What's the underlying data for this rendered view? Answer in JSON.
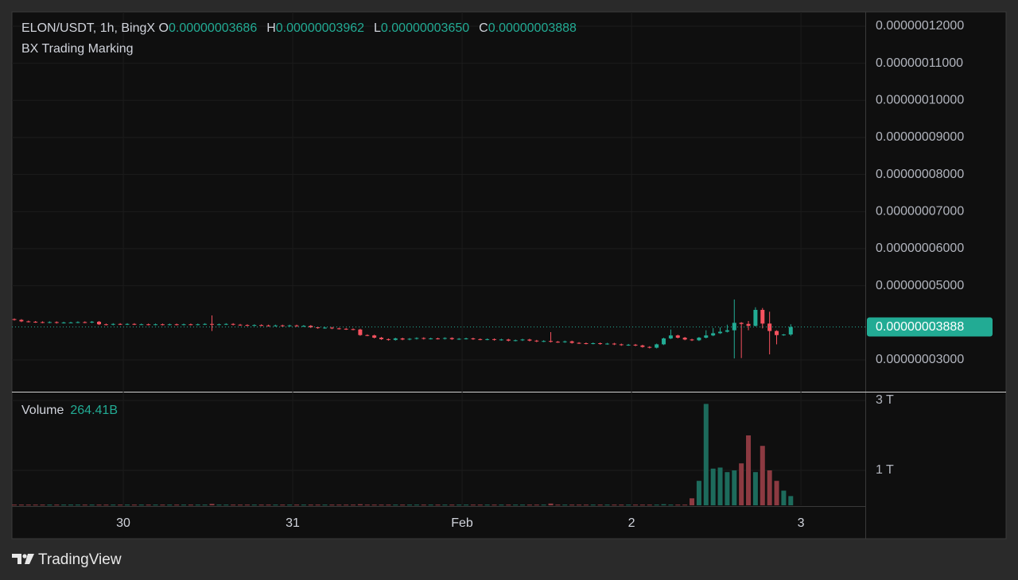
{
  "chart_data": {
    "type": "candlestick",
    "symbol": "ELON/USDT, 1h, BingX",
    "subtitle": "BX Trading Marking",
    "legend_keys": [
      "O",
      "H",
      "L",
      "C"
    ],
    "last_labels": {
      "open": "0.00000003686",
      "high": "0.00000003962",
      "low": "0.00000003650",
      "close": "0.00000003888"
    },
    "volume_title": "Volume",
    "last_volume_label": "264.41B",
    "brand": "TradingView",
    "up_color": "#22ab94",
    "down_color": "#f7525f",
    "volume_up_color": "#1d6b5c",
    "volume_down_color": "#8c3a41",
    "grid": true,
    "xlim": [
      -0.34,
      120.56
    ],
    "xticks": [
      {
        "value": 15.44,
        "label": "30"
      },
      {
        "value": 39.44,
        "label": "31"
      },
      {
        "value": 63.44,
        "label": "Feb"
      },
      {
        "value": 87.44,
        "label": "2"
      },
      {
        "value": 111.44,
        "label": "3"
      }
    ],
    "ylim": [
      2.143e-08,
      1.2385e-07
    ],
    "yticks": [
      {
        "value": 1.2e-07,
        "label": "0.00000012000"
      },
      {
        "value": 1.1e-07,
        "label": "0.00000011000"
      },
      {
        "value": 1e-07,
        "label": "0.00000010000"
      },
      {
        "value": 9e-08,
        "label": "0.00000009000"
      },
      {
        "value": 8e-08,
        "label": "0.00000008000"
      },
      {
        "value": 7e-08,
        "label": "0.00000007000"
      },
      {
        "value": 6e-08,
        "label": "0.00000006000"
      },
      {
        "value": 5e-08,
        "label": "0.00000005000"
      },
      {
        "value": 3e-08,
        "label": "0.00000003000"
      }
    ],
    "vlim": [
      0,
      3227000000000.0
    ],
    "vticks": [
      {
        "value": 3000000000000.0,
        "label": "3 T"
      },
      {
        "value": 1000000000000.0,
        "label": "1 T"
      }
    ],
    "open": [
      4.1e-08,
      4.08e-08,
      4.04e-08,
      4.03e-08,
      4.02e-08,
      4.01e-08,
      4.02e-08,
      4e-08,
      4.01e-08,
      4.01e-08,
      4.02e-08,
      4.01e-08,
      4.03e-08,
      3.96e-08,
      3.95e-08,
      3.97e-08,
      3.96e-08,
      3.97e-08,
      3.96e-08,
      3.96e-08,
      3.95e-08,
      3.96e-08,
      3.95e-08,
      3.96e-08,
      3.95e-08,
      3.96e-08,
      3.95e-08,
      3.96e-08,
      3.97e-08,
      3.95e-08,
      3.96e-08,
      3.97e-08,
      3.95e-08,
      3.94e-08,
      3.93e-08,
      3.94e-08,
      3.93e-08,
      3.92e-08,
      3.93e-08,
      3.92e-08,
      3.93e-08,
      3.91e-08,
      3.92e-08,
      3.88e-08,
      3.86e-08,
      3.87e-08,
      3.85e-08,
      3.84e-08,
      3.83e-08,
      3.82e-08,
      3.67e-08,
      3.66e-08,
      3.6e-08,
      3.56e-08,
      3.54e-08,
      3.58e-08,
      3.55e-08,
      3.57e-08,
      3.59e-08,
      3.57e-08,
      3.58e-08,
      3.57e-08,
      3.59e-08,
      3.56e-08,
      3.57e-08,
      3.58e-08,
      3.56e-08,
      3.55e-08,
      3.56e-08,
      3.54e-08,
      3.55e-08,
      3.52e-08,
      3.53e-08,
      3.55e-08,
      3.52e-08,
      3.5e-08,
      3.51e-08,
      3.49e-08,
      3.48e-08,
      3.5e-08,
      3.46e-08,
      3.45e-08,
      3.44e-08,
      3.45e-08,
      3.43e-08,
      3.44e-08,
      3.42e-08,
      3.4e-08,
      3.41e-08,
      3.39e-08,
      3.35e-08,
      3.33e-08,
      3.42e-08,
      3.58e-08,
      3.66e-08,
      3.6e-08,
      3.55e-08,
      3.53e-08,
      3.6e-08,
      3.66e-08,
      3.72e-08,
      3.76e-08,
      3.8e-08,
      4e-08,
      3.97e-08,
      3.92e-08,
      4.35e-08,
      3.98e-08,
      3.78e-08,
      3.67e-08,
      3.686e-08
    ],
    "high": [
      4.12e-08,
      4.1e-08,
      4.06e-08,
      4.05e-08,
      4.04e-08,
      4.04e-08,
      4.04e-08,
      4.03e-08,
      4.03e-08,
      4.04e-08,
      4.04e-08,
      4.05e-08,
      4.05e-08,
      3.98e-08,
      3.99e-08,
      3.99e-08,
      3.99e-08,
      3.99e-08,
      3.98e-08,
      3.98e-08,
      3.98e-08,
      3.98e-08,
      3.98e-08,
      3.98e-08,
      3.98e-08,
      3.98e-08,
      3.98e-08,
      3.99e-08,
      4.2e-08,
      3.98e-08,
      3.99e-08,
      3.99e-08,
      3.97e-08,
      3.96e-08,
      3.96e-08,
      3.96e-08,
      3.95e-08,
      3.95e-08,
      3.95e-08,
      3.95e-08,
      3.95e-08,
      3.94e-08,
      3.94e-08,
      3.9e-08,
      3.89e-08,
      3.89e-08,
      3.87e-08,
      3.86e-08,
      3.85e-08,
      3.84e-08,
      3.69e-08,
      3.68e-08,
      3.62e-08,
      3.58e-08,
      3.6e-08,
      3.6e-08,
      3.59e-08,
      3.61e-08,
      3.61e-08,
      3.6e-08,
      3.6e-08,
      3.61e-08,
      3.61e-08,
      3.59e-08,
      3.6e-08,
      3.6e-08,
      3.58e-08,
      3.58e-08,
      3.58e-08,
      3.57e-08,
      3.57e-08,
      3.55e-08,
      3.57e-08,
      3.57e-08,
      3.54e-08,
      3.53e-08,
      3.75e-08,
      3.51e-08,
      3.52e-08,
      3.52e-08,
      3.48e-08,
      3.47e-08,
      3.47e-08,
      3.47e-08,
      3.46e-08,
      3.46e-08,
      3.44e-08,
      3.43e-08,
      3.43e-08,
      3.41e-08,
      3.37e-08,
      3.44e-08,
      3.6e-08,
      3.82e-08,
      3.68e-08,
      3.62e-08,
      3.57e-08,
      3.62e-08,
      3.8e-08,
      3.86e-08,
      3.88e-08,
      3.95e-08,
      4.63e-08,
      4.02e-08,
      4.05e-08,
      4.42e-08,
      4.4e-08,
      4.3e-08,
      3.8e-08,
      3.7e-08,
      3.962e-08
    ],
    "low": [
      4.06e-08,
      4.02e-08,
      4.01e-08,
      4e-08,
      3.99e-08,
      3.99e-08,
      3.98e-08,
      3.98e-08,
      3.99e-08,
      3.99e-08,
      3.99e-08,
      3.99e-08,
      3.94e-08,
      3.93e-08,
      3.93e-08,
      3.94e-08,
      3.94e-08,
      3.94e-08,
      3.94e-08,
      3.93e-08,
      3.93e-08,
      3.93e-08,
      3.93e-08,
      3.93e-08,
      3.93e-08,
      3.93e-08,
      3.93e-08,
      3.94e-08,
      3.78e-08,
      3.93e-08,
      3.94e-08,
      3.93e-08,
      3.92e-08,
      3.91e-08,
      3.91e-08,
      3.91e-08,
      3.9e-08,
      3.9e-08,
      3.9e-08,
      3.9e-08,
      3.89e-08,
      3.89e-08,
      3.86e-08,
      3.84e-08,
      3.84e-08,
      3.83e-08,
      3.82e-08,
      3.81e-08,
      3.8e-08,
      3.65e-08,
      3.64e-08,
      3.58e-08,
      3.54e-08,
      3.52e-08,
      3.52e-08,
      3.53e-08,
      3.53e-08,
      3.55e-08,
      3.55e-08,
      3.55e-08,
      3.55e-08,
      3.55e-08,
      3.54e-08,
      3.54e-08,
      3.55e-08,
      3.54e-08,
      3.53e-08,
      3.53e-08,
      3.52e-08,
      3.52e-08,
      3.5e-08,
      3.5e-08,
      3.51e-08,
      3.5e-08,
      3.48e-08,
      3.48e-08,
      3.47e-08,
      3.46e-08,
      3.46e-08,
      3.44e-08,
      3.43e-08,
      3.42e-08,
      3.42e-08,
      3.41e-08,
      3.41e-08,
      3.4e-08,
      3.38e-08,
      3.38e-08,
      3.37e-08,
      3.33e-08,
      3.31e-08,
      3.31e-08,
      3.4e-08,
      3.56e-08,
      3.58e-08,
      3.53e-08,
      3.51e-08,
      3.51e-08,
      3.58e-08,
      3.64e-08,
      3.7e-08,
      3.74e-08,
      3.04e-08,
      3.05e-08,
      3.8e-08,
      3.9e-08,
      3.85e-08,
      3.15e-08,
      3.42e-08,
      3.65e-08,
      3.65e-08
    ],
    "close": [
      4.08e-08,
      4.04e-08,
      4.03e-08,
      4.02e-08,
      4.01e-08,
      4.02e-08,
      4e-08,
      4.01e-08,
      4.01e-08,
      4.02e-08,
      4.01e-08,
      4.03e-08,
      3.96e-08,
      3.95e-08,
      3.97e-08,
      3.96e-08,
      3.97e-08,
      3.96e-08,
      3.96e-08,
      3.95e-08,
      3.96e-08,
      3.95e-08,
      3.96e-08,
      3.95e-08,
      3.96e-08,
      3.95e-08,
      3.96e-08,
      3.97e-08,
      3.95e-08,
      3.96e-08,
      3.97e-08,
      3.95e-08,
      3.94e-08,
      3.93e-08,
      3.94e-08,
      3.93e-08,
      3.92e-08,
      3.93e-08,
      3.92e-08,
      3.93e-08,
      3.91e-08,
      3.92e-08,
      3.88e-08,
      3.86e-08,
      3.87e-08,
      3.85e-08,
      3.84e-08,
      3.83e-08,
      3.82e-08,
      3.67e-08,
      3.66e-08,
      3.6e-08,
      3.56e-08,
      3.54e-08,
      3.58e-08,
      3.55e-08,
      3.57e-08,
      3.59e-08,
      3.57e-08,
      3.58e-08,
      3.57e-08,
      3.59e-08,
      3.56e-08,
      3.57e-08,
      3.58e-08,
      3.56e-08,
      3.55e-08,
      3.56e-08,
      3.54e-08,
      3.55e-08,
      3.52e-08,
      3.53e-08,
      3.55e-08,
      3.52e-08,
      3.5e-08,
      3.51e-08,
      3.49e-08,
      3.48e-08,
      3.5e-08,
      3.46e-08,
      3.45e-08,
      3.44e-08,
      3.45e-08,
      3.43e-08,
      3.44e-08,
      3.42e-08,
      3.4e-08,
      3.41e-08,
      3.39e-08,
      3.35e-08,
      3.33e-08,
      3.42e-08,
      3.58e-08,
      3.66e-08,
      3.6e-08,
      3.55e-08,
      3.53e-08,
      3.6e-08,
      3.66e-08,
      3.72e-08,
      3.76e-08,
      3.8e-08,
      4e-08,
      3.97e-08,
      3.92e-08,
      4.35e-08,
      3.98e-08,
      3.78e-08,
      3.67e-08,
      3.686e-08,
      3.888e-08
    ],
    "volume": [
      20000000000.0,
      20000000000.0,
      20000000000.0,
      20000000000.0,
      20000000000.0,
      20000000000.0,
      20000000000.0,
      20000000000.0,
      20000000000.0,
      20000000000.0,
      20000000000.0,
      20000000000.0,
      20000000000.0,
      20000000000.0,
      20000000000.0,
      20000000000.0,
      20000000000.0,
      20000000000.0,
      20000000000.0,
      20000000000.0,
      20000000000.0,
      20000000000.0,
      20000000000.0,
      20000000000.0,
      20000000000.0,
      20000000000.0,
      20000000000.0,
      20000000000.0,
      40000000000.0,
      20000000000.0,
      20000000000.0,
      20000000000.0,
      20000000000.0,
      20000000000.0,
      20000000000.0,
      20000000000.0,
      20000000000.0,
      20000000000.0,
      20000000000.0,
      20000000000.0,
      20000000000.0,
      20000000000.0,
      20000000000.0,
      20000000000.0,
      20000000000.0,
      20000000000.0,
      20000000000.0,
      20000000000.0,
      20000000000.0,
      30000000000.0,
      20000000000.0,
      20000000000.0,
      20000000000.0,
      20000000000.0,
      20000000000.0,
      20000000000.0,
      20000000000.0,
      20000000000.0,
      20000000000.0,
      20000000000.0,
      20000000000.0,
      20000000000.0,
      20000000000.0,
      20000000000.0,
      20000000000.0,
      20000000000.0,
      20000000000.0,
      20000000000.0,
      20000000000.0,
      20000000000.0,
      20000000000.0,
      20000000000.0,
      20000000000.0,
      20000000000.0,
      20000000000.0,
      20000000000.0,
      50000000000.0,
      20000000000.0,
      20000000000.0,
      20000000000.0,
      20000000000.0,
      20000000000.0,
      20000000000.0,
      20000000000.0,
      20000000000.0,
      20000000000.0,
      20000000000.0,
      20000000000.0,
      20000000000.0,
      20000000000.0,
      20000000000.0,
      20000000000.0,
      30000000000.0,
      20000000000.0,
      20000000000.0,
      20000000000.0,
      200000000000.0,
      700000000000.0,
      2900000000000.0,
      1050000000000.0,
      1080000000000.0,
      950000000000.0,
      1000000000000.0,
      1200000000000.0,
      2000000000000.0,
      950000000000.0,
      1700000000000.0,
      1000000000000.0,
      700000000000.0,
      420000000000.0,
      264410000000.0
    ]
  }
}
